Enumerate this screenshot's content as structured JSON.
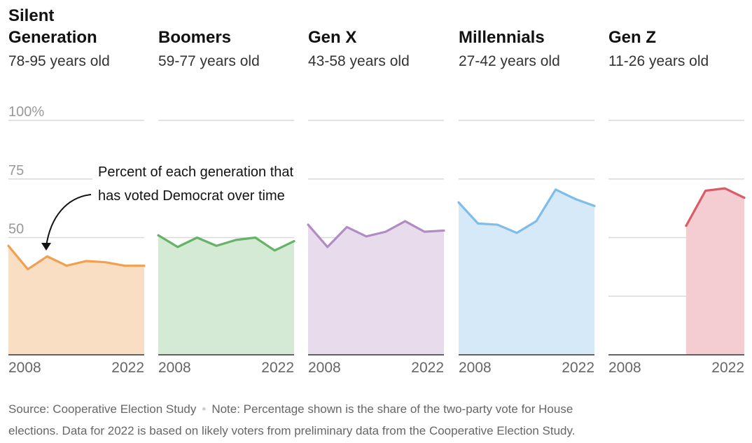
{
  "chart_data": {
    "type": "area",
    "title": "",
    "ylim": [
      0,
      100
    ],
    "y_ticks": [
      "100%",
      "75",
      "50"
    ],
    "x_tick_labels": [
      "2008",
      "2022"
    ],
    "grid": "horizontal",
    "annotation": {
      "line1": "Percent of each generation that",
      "line2": "has voted Democrat over time",
      "target": "Silent Generation"
    },
    "panels": [
      {
        "name_lines": [
          "Silent",
          "Generation"
        ],
        "age": "78-95 years old",
        "color": "#f0a050",
        "fill": "#fadec3",
        "x": [
          2008,
          2010,
          2012,
          2014,
          2016,
          2018,
          2020,
          2022
        ],
        "values": [
          46.5,
          36.5,
          42,
          38,
          40,
          39.5,
          38,
          38
        ]
      },
      {
        "name_lines": [
          "Boomers"
        ],
        "age": "59-77 years old",
        "color": "#66b266",
        "fill": "#d4ead4",
        "x": [
          2008,
          2010,
          2012,
          2014,
          2016,
          2018,
          2020,
          2022
        ],
        "values": [
          51,
          46,
          50,
          46.5,
          49,
          50,
          44.5,
          48.5
        ]
      },
      {
        "name_lines": [
          "Gen X"
        ],
        "age": "43-58 years old",
        "color": "#b08cc4",
        "fill": "#e8dcec",
        "x": [
          2008,
          2010,
          2012,
          2014,
          2016,
          2018,
          2020,
          2022
        ],
        "values": [
          55.5,
          46,
          54.5,
          50.5,
          52.5,
          57,
          52.5,
          53
        ]
      },
      {
        "name_lines": [
          "Millennials"
        ],
        "age": "27-42 years old",
        "color": "#7dbde8",
        "fill": "#d6e9f8",
        "x": [
          2008,
          2010,
          2012,
          2014,
          2016,
          2018,
          2020,
          2022
        ],
        "values": [
          65,
          56,
          55.5,
          52,
          57,
          70.5,
          66.5,
          63.5
        ]
      },
      {
        "name_lines": [
          "Gen Z"
        ],
        "age": "11-26 years old",
        "color": "#d95c64",
        "fill": "#f4cdd2",
        "x": [
          2016,
          2018,
          2020,
          2022
        ],
        "values": [
          55,
          70,
          71,
          67
        ]
      }
    ],
    "source": "Source: Cooperative Election Study",
    "note_line1": "Note: Percentage shown is the share of the two-party vote for House",
    "note_line2": "elections. Data for 2022 is based on likely voters from preliminary data from the Cooperative Election Study."
  }
}
